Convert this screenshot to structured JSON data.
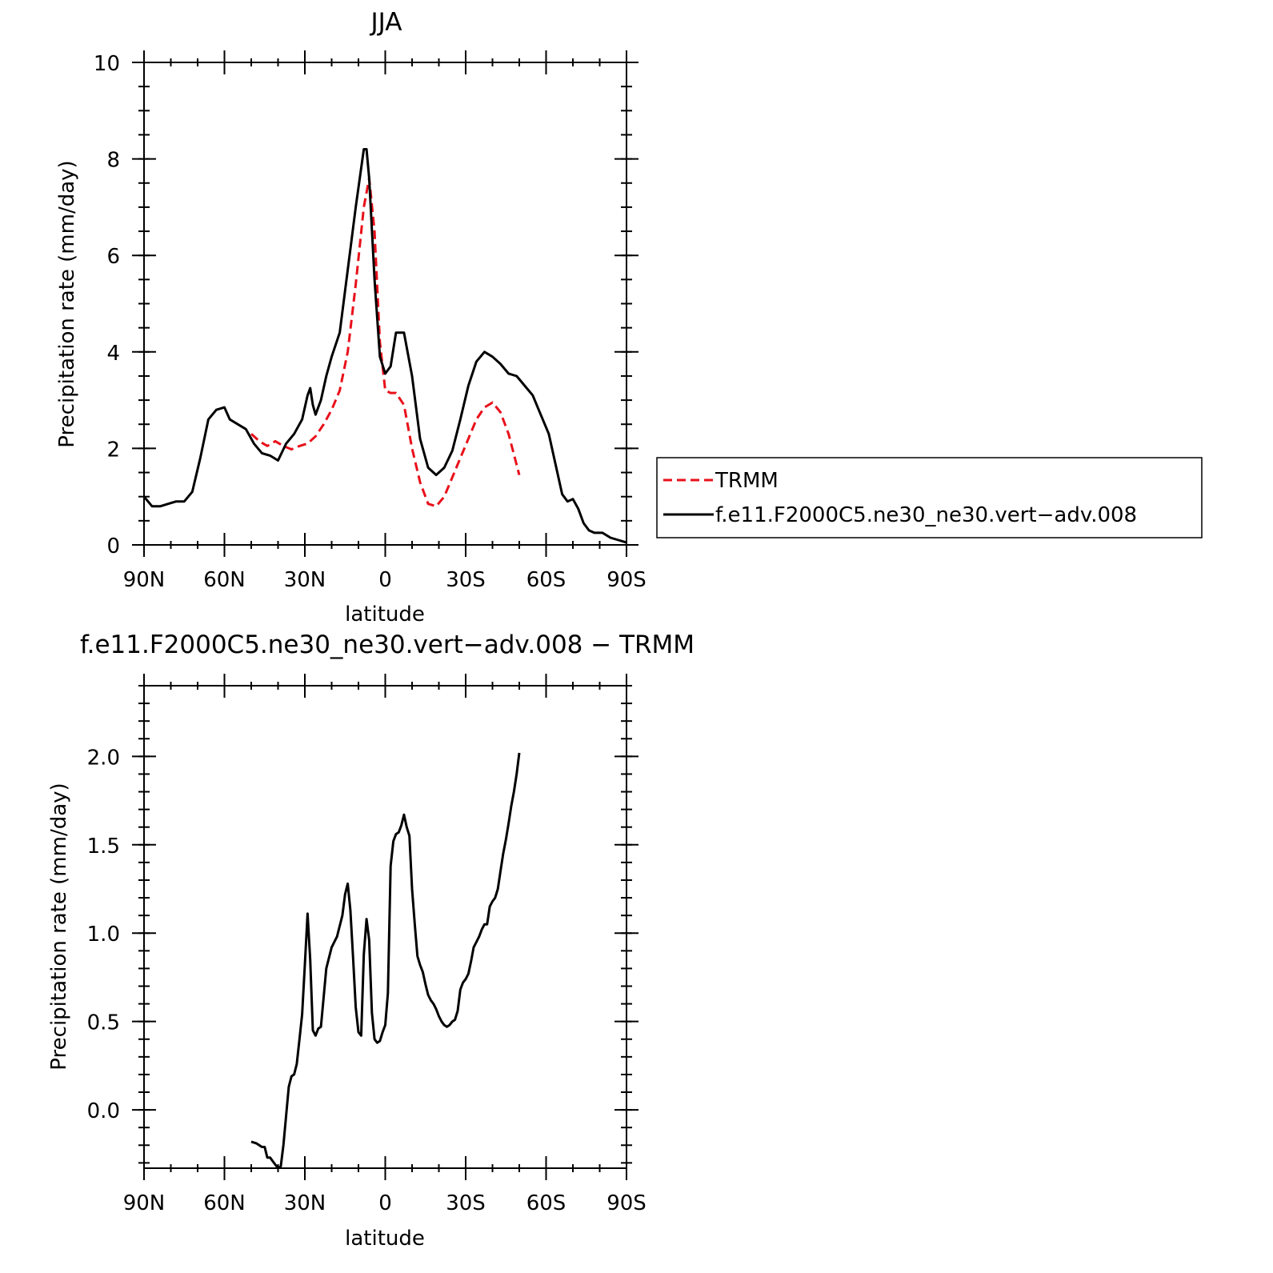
{
  "chart_data": [
    {
      "type": "line",
      "title": "JJA",
      "xlabel": "latitude",
      "ylabel": "Precipitation rate (mm/day)",
      "xlim": [
        90,
        -90
      ],
      "ylim": [
        0,
        10
      ],
      "x_ticks": [
        {
          "value": 90,
          "label": "90N"
        },
        {
          "value": 60,
          "label": "60N"
        },
        {
          "value": 30,
          "label": "30N"
        },
        {
          "value": 0,
          "label": "0"
        },
        {
          "value": -30,
          "label": "30S"
        },
        {
          "value": -60,
          "label": "60S"
        },
        {
          "value": -90,
          "label": "90S"
        }
      ],
      "y_ticks": [
        {
          "value": 0,
          "label": "0"
        },
        {
          "value": 2,
          "label": "2"
        },
        {
          "value": 4,
          "label": "4"
        },
        {
          "value": 6,
          "label": "6"
        },
        {
          "value": 8,
          "label": "8"
        },
        {
          "value": 10,
          "label": "10"
        }
      ],
      "legend": {
        "position": "right"
      },
      "series": [
        {
          "name": "TRMM",
          "color": "#e8101a",
          "style": "dashed",
          "x": [
            50,
            47,
            44,
            41,
            38,
            35,
            32,
            29,
            26,
            23,
            20,
            17,
            14,
            11,
            8,
            6,
            4,
            2,
            0,
            -2,
            -4,
            -7,
            -10,
            -13,
            -16,
            -19,
            -22,
            -25,
            -28,
            -31,
            -34,
            -37,
            -40,
            -43,
            -46,
            -50
          ],
          "y": [
            2.3,
            2.15,
            2.05,
            2.15,
            2.05,
            1.98,
            2.05,
            2.1,
            2.25,
            2.5,
            2.8,
            3.2,
            4.0,
            5.4,
            7.0,
            7.6,
            6.5,
            4.2,
            3.2,
            3.15,
            3.15,
            2.9,
            2.0,
            1.3,
            0.85,
            0.8,
            1.0,
            1.4,
            1.8,
            2.2,
            2.6,
            2.85,
            2.95,
            2.75,
            2.3,
            1.45
          ]
        },
        {
          "name": "f.e11.F2000C5.ne30_ne30.vert−adv.008",
          "color": "#000000",
          "style": "solid",
          "x": [
            90,
            87,
            84,
            81,
            78,
            75,
            72,
            69,
            66,
            63,
            60,
            58,
            55,
            52,
            49,
            46,
            43,
            40,
            37,
            34,
            31,
            29,
            28,
            27,
            26,
            24,
            22,
            20,
            17,
            14,
            11,
            8,
            7,
            6,
            4,
            2,
            0,
            -2,
            -4,
            -7,
            -10,
            -13,
            -16,
            -19,
            -22,
            -25,
            -28,
            -31,
            -34,
            -37,
            -40,
            -43,
            -46,
            -49,
            -52,
            -55,
            -58,
            -61,
            -64,
            -66,
            -68,
            -70,
            -72,
            -74,
            -76,
            -78,
            -81,
            -84,
            -87,
            -90
          ],
          "y": [
            1.0,
            0.8,
            0.8,
            0.85,
            0.9,
            0.9,
            1.1,
            1.8,
            2.6,
            2.8,
            2.85,
            2.6,
            2.5,
            2.4,
            2.1,
            1.9,
            1.85,
            1.75,
            2.1,
            2.3,
            2.6,
            3.1,
            3.25,
            2.9,
            2.7,
            3.0,
            3.5,
            3.9,
            4.4,
            5.7,
            7.0,
            8.2,
            8.2,
            7.6,
            5.5,
            3.9,
            3.55,
            3.7,
            4.4,
            4.4,
            3.5,
            2.2,
            1.6,
            1.45,
            1.6,
            1.95,
            2.6,
            3.3,
            3.8,
            4.0,
            3.9,
            3.75,
            3.55,
            3.5,
            3.3,
            3.1,
            2.7,
            2.3,
            1.55,
            1.05,
            0.9,
            0.95,
            0.75,
            0.45,
            0.3,
            0.25,
            0.25,
            0.15,
            0.1,
            0.05
          ]
        }
      ]
    },
    {
      "type": "line",
      "title": "f.e11.F2000C5.ne30_ne30.vert−adv.008 − TRMM",
      "xlabel": "latitude",
      "ylabel": "Precipitation rate (mm/day)",
      "xlim": [
        90,
        -90
      ],
      "ylim": [
        -0.33,
        2.4
      ],
      "x_ticks": [
        {
          "value": 90,
          "label": "90N"
        },
        {
          "value": 60,
          "label": "60N"
        },
        {
          "value": 30,
          "label": "30N"
        },
        {
          "value": 0,
          "label": "0"
        },
        {
          "value": -30,
          "label": "30S"
        },
        {
          "value": -60,
          "label": "60S"
        },
        {
          "value": -90,
          "label": "90S"
        }
      ],
      "y_ticks": [
        {
          "value": 0.0,
          "label": "0.0"
        },
        {
          "value": 0.5,
          "label": "0.5"
        },
        {
          "value": 1.0,
          "label": "1.0"
        },
        {
          "value": 1.5,
          "label": "1.5"
        },
        {
          "value": 2.0,
          "label": "2.0"
        }
      ],
      "series": [
        {
          "color": "#000000",
          "style": "solid",
          "x": [
            50,
            48,
            46,
            45,
            44,
            43,
            41,
            40,
            39,
            38,
            36,
            35,
            34,
            33,
            32,
            31,
            30,
            29,
            28,
            27,
            26,
            25,
            24,
            22,
            21,
            20,
            18,
            16,
            15,
            14,
            13,
            12,
            11,
            10,
            9,
            8,
            7,
            6,
            5,
            4,
            3,
            2,
            1,
            0,
            -1,
            -2,
            -3,
            -4,
            -5,
            -6,
            -7,
            -8,
            -9,
            -10,
            -11,
            -12,
            -13,
            -14,
            -15,
            -16,
            -17,
            -18,
            -19,
            -20,
            -21,
            -22,
            -23,
            -24,
            -25,
            -26,
            -27,
            -28,
            -29,
            -30,
            -31,
            -32,
            -33,
            -34,
            -35,
            -36,
            -37,
            -38,
            -39,
            -40,
            -41,
            -42,
            -43,
            -44,
            -45,
            -46,
            -47,
            -48,
            -49,
            -50
          ],
          "y": [
            -0.18,
            -0.19,
            -0.21,
            -0.21,
            -0.27,
            -0.27,
            -0.31,
            -0.33,
            -0.32,
            -0.2,
            0.13,
            0.19,
            0.2,
            0.26,
            0.4,
            0.54,
            0.82,
            1.11,
            0.85,
            0.45,
            0.42,
            0.46,
            0.47,
            0.8,
            0.86,
            0.92,
            0.98,
            1.1,
            1.22,
            1.28,
            1.13,
            0.86,
            0.58,
            0.44,
            0.42,
            0.88,
            1.08,
            0.96,
            0.55,
            0.4,
            0.38,
            0.39,
            0.44,
            0.48,
            0.66,
            1.38,
            1.52,
            1.56,
            1.57,
            1.61,
            1.67,
            1.6,
            1.55,
            1.25,
            1.05,
            0.87,
            0.82,
            0.78,
            0.71,
            0.65,
            0.62,
            0.6,
            0.57,
            0.53,
            0.5,
            0.48,
            0.47,
            0.48,
            0.5,
            0.51,
            0.56,
            0.68,
            0.72,
            0.74,
            0.77,
            0.84,
            0.92,
            0.95,
            0.98,
            1.02,
            1.05,
            1.05,
            1.15,
            1.18,
            1.2,
            1.25,
            1.35,
            1.45,
            1.53,
            1.62,
            1.72,
            1.8,
            1.9,
            2.02
          ]
        }
      ]
    }
  ]
}
